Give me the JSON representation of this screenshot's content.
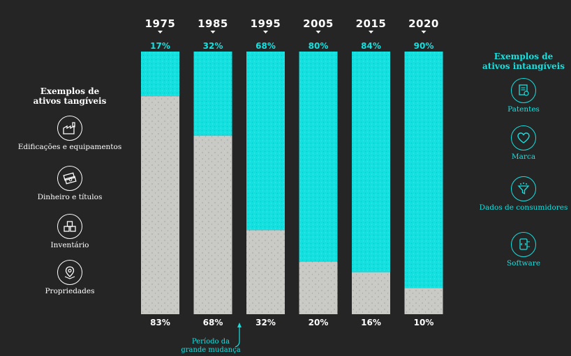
{
  "left_panel": {
    "heading": "Exemplos  de\nativos tangíveis",
    "items": [
      {
        "label": "Edificações e equipamentos",
        "icon": "factory-icon"
      },
      {
        "label": "Dinheiro e títulos",
        "icon": "cash-stack-icon"
      },
      {
        "label": "Inventário",
        "icon": "boxes-icon"
      },
      {
        "label": "Propriedades",
        "icon": "map-pin-icon"
      }
    ]
  },
  "right_panel": {
    "heading": "Exemplos de\nativos intangíveis",
    "items": [
      {
        "label": "Patentes",
        "icon": "certificate-icon"
      },
      {
        "label": "Marca",
        "icon": "heart-icon"
      },
      {
        "label": "Dados de consumidores",
        "icon": "funnel-icon"
      },
      {
        "label": "Software",
        "icon": "code-screen-icon"
      }
    ]
  },
  "annotation": "Período da\ngrande mudança",
  "colors": {
    "intangible": "#15e0e0",
    "tangible": "#c9c9c6",
    "background": "#252525"
  },
  "chart_data": {
    "type": "bar",
    "stacked": true,
    "categories": [
      "1975",
      "1985",
      "1995",
      "2005",
      "2015",
      "2020"
    ],
    "series": [
      {
        "values": [
          17,
          32,
          68,
          80,
          84,
          90
        ],
        "labels": [
          "17%",
          "32%",
          "68%",
          "80%",
          "84%",
          "90%"
        ]
      },
      {
        "values": [
          83,
          68,
          32,
          20,
          16,
          10
        ],
        "labels": [
          "83%",
          "68%",
          "32%",
          "20%",
          "16%",
          "10%"
        ]
      }
    ],
    "ylim": [
      0,
      100
    ]
  }
}
